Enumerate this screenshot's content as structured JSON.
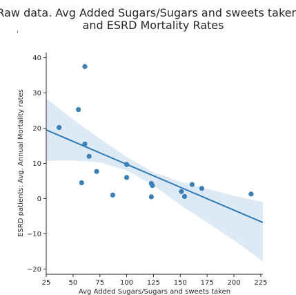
{
  "chart_data": {
    "type": "scatter",
    "title_lines": [
      "Raw data. Avg Added Sugars/Sugars and sweets taken",
      "and ESRD Mortality Rates"
    ],
    "subtitle_mark": "'",
    "xlabel": "Avg Added Sugars/Sugars and sweets taken",
    "ylabel": "ESRD patients: Avg. Annual Mortality rates",
    "xlim": [
      25,
      227
    ],
    "ylim": [
      -21.5,
      41.5
    ],
    "xticks": [
      25,
      50,
      75,
      100,
      125,
      150,
      175,
      200,
      225
    ],
    "yticks": [
      -20,
      -10,
      0,
      10,
      20,
      30,
      40
    ],
    "grid": false,
    "points": [
      {
        "x": 37,
        "y": 20.2
      },
      {
        "x": 55,
        "y": 25.3
      },
      {
        "x": 58,
        "y": 4.5
      },
      {
        "x": 61,
        "y": 37.5
      },
      {
        "x": 61,
        "y": 15.5
      },
      {
        "x": 65,
        "y": 12.0
      },
      {
        "x": 72,
        "y": 7.7
      },
      {
        "x": 87,
        "y": 1.0
      },
      {
        "x": 100,
        "y": 9.7
      },
      {
        "x": 100,
        "y": 6.0
      },
      {
        "x": 123,
        "y": 4.3
      },
      {
        "x": 124,
        "y": 3.7
      },
      {
        "x": 123,
        "y": 0.5
      },
      {
        "x": 151,
        "y": 2.0
      },
      {
        "x": 154,
        "y": 0.6
      },
      {
        "x": 161,
        "y": 4.0
      },
      {
        "x": 170,
        "y": 2.9
      },
      {
        "x": 216,
        "y": 1.3
      }
    ],
    "regression_line": {
      "x": [
        25,
        227
      ],
      "y": [
        19.5,
        -6.8
      ]
    },
    "confidence_band": {
      "x": [
        25,
        50,
        75,
        100,
        125,
        150,
        175,
        200,
        227
      ],
      "upper": [
        28.5,
        22.5,
        17.0,
        11.8,
        7.5,
        4.8,
        2.8,
        0.8,
        -1.0
      ],
      "lower": [
        10.7,
        10.8,
        10.3,
        8.0,
        3.8,
        -1.8,
        -6.8,
        -11.8,
        -17.8
      ]
    },
    "colors": {
      "point": "#3a7fb5",
      "line": "#2c7bb6",
      "band": "#c6dbef"
    }
  }
}
